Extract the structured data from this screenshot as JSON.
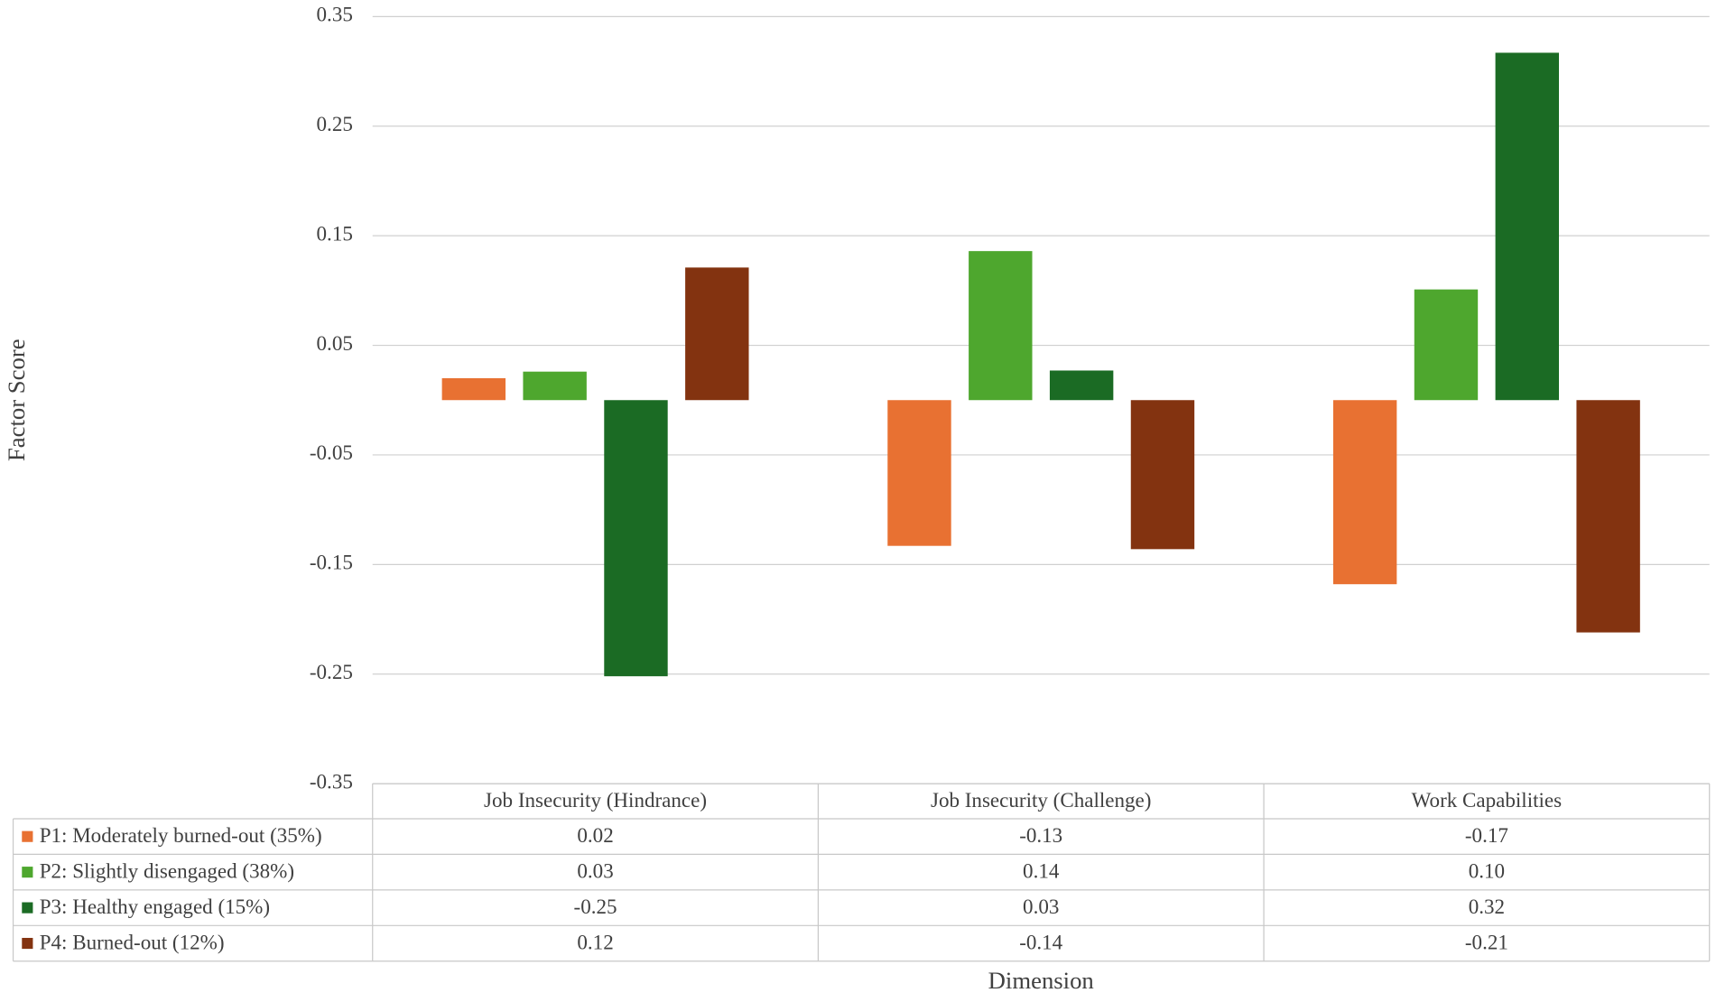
{
  "chart_data": {
    "type": "bar",
    "x_label": "Dimension",
    "y_label": "Factor Score",
    "categories": [
      "Job Insecurity (Hindrance)",
      "Job Insecurity (Challenge)",
      "Work Capabilities"
    ],
    "series": [
      {
        "name": "P1: Moderately burned-out (35%)",
        "color": "#e87132",
        "values": [
          0.02,
          -0.133,
          -0.168
        ],
        "value_labels": [
          "0.02",
          "-0.13",
          "-0.17"
        ]
      },
      {
        "name": "P2: Slightly disengaged (38%)",
        "color": "#4ea72e",
        "values": [
          0.026,
          0.136,
          0.101
        ],
        "value_labels": [
          "0.03",
          "0.14",
          "0.10"
        ]
      },
      {
        "name": "P3: Healthy engaged (15%)",
        "color": "#1b6b24",
        "values": [
          -0.252,
          0.027,
          0.317
        ],
        "value_labels": [
          "-0.25",
          "0.03",
          "0.32"
        ]
      },
      {
        "name": "P4: Burned-out (12%)",
        "color": "#833310",
        "values": [
          0.121,
          -0.136,
          -0.212
        ],
        "value_labels": [
          "0.12",
          "-0.14",
          "-0.21"
        ]
      }
    ],
    "ylim": [
      -0.35,
      0.35
    ],
    "yticks": [
      0.35,
      0.25,
      0.15,
      0.05,
      -0.05,
      -0.15,
      -0.25,
      -0.35
    ],
    "grid": true
  }
}
